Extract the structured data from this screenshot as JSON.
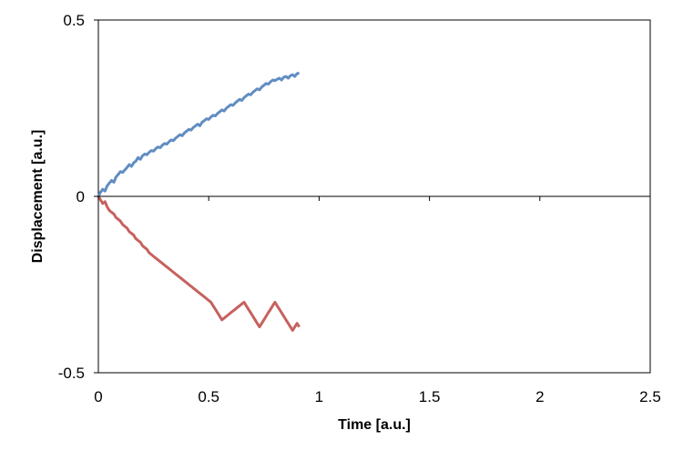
{
  "chart_data": {
    "type": "line",
    "xlabel": "Time [a.u.]",
    "ylabel": "Displacement [a.u.]",
    "xlim": [
      0,
      2.5
    ],
    "ylim": [
      -0.5,
      0.5
    ],
    "x_ticks": [
      "0",
      "0.5",
      "1",
      "1.5",
      "2",
      "2.5"
    ],
    "y_ticks": [
      "-0.5",
      "0",
      "0.5"
    ],
    "grid": false,
    "legend": "none",
    "x_step": 0.01,
    "colors": [
      "#4f81bd",
      "#c0504d",
      "#9bbb59",
      "#8064a2",
      "#4bacc6",
      "#f79646",
      "#2c4d75",
      "#772c2a",
      "#5f7530",
      "#4d3b62",
      "#276a7c",
      "#b65708",
      "#729aca",
      "#cd7371",
      "#afc97a",
      "#9983b5",
      "#6fbdd1",
      "#f9ab6b",
      "#3a5f8f",
      "#e26b0a",
      "#c3b7d4",
      "#f2c0a9"
    ],
    "series": [
      {
        "values": [
          0,
          0.012,
          0.02,
          0.015,
          0.03,
          0.038,
          0.045,
          0.04,
          0.055,
          0.062,
          0.07,
          0.068,
          0.075,
          0.082,
          0.09,
          0.085,
          0.095,
          0.1,
          0.11,
          0.105,
          0.115,
          0.12,
          0.118,
          0.125,
          0.13,
          0.128,
          0.135,
          0.14,
          0.138,
          0.145,
          0.15,
          0.148,
          0.155,
          0.16,
          0.158,
          0.165,
          0.17,
          0.175,
          0.172,
          0.18,
          0.185,
          0.19,
          0.188,
          0.195,
          0.2,
          0.205,
          0.2,
          0.21,
          0.215,
          0.22,
          0.218,
          0.225,
          0.23,
          0.228,
          0.235,
          0.24,
          0.245,
          0.242,
          0.25,
          0.255,
          0.26,
          0.258,
          0.265,
          0.27,
          0.275,
          0.272,
          0.28,
          0.285,
          0.29,
          0.288,
          0.295,
          0.3,
          0.305,
          0.302,
          0.31,
          0.315,
          0.32,
          0.318,
          0.325,
          0.33,
          0.328,
          0.332,
          0.335,
          0.33,
          0.338,
          0.34,
          0.335,
          0.342,
          0.345,
          0.34,
          0.348,
          0.35
        ]
      },
      {
        "values": [
          0,
          -0.01,
          -0.02,
          -0.015,
          -0.03,
          -0.04,
          -0.045,
          -0.05,
          -0.06,
          -0.065,
          -0.07,
          -0.08,
          -0.085,
          -0.09,
          -0.1,
          -0.105,
          -0.11,
          -0.12,
          -0.125,
          -0.13,
          -0.14,
          -0.145,
          -0.15,
          -0.16,
          -0.165,
          -0.17,
          -0.175,
          -0.18,
          -0.185,
          -0.19,
          -0.195,
          -0.2,
          -0.205,
          -0.21,
          -0.215,
          -0.22,
          -0.225,
          -0.23,
          -0.235,
          -0.24,
          -0.245,
          -0.25,
          -0.255,
          -0.26,
          -0.265,
          -0.27,
          -0.275,
          -0.28,
          -0.285,
          -0.29,
          -0.295,
          -0.3,
          -0.31,
          -0.32,
          -0.33,
          -0.34,
          -0.35,
          -0.345,
          -0.34,
          -0.335,
          -0.33,
          -0.325,
          -0.32,
          -0.315,
          -0.31,
          -0.305,
          -0.3,
          -0.31,
          -0.32,
          -0.33,
          -0.34,
          -0.35,
          -0.36,
          -0.37,
          -0.36,
          -0.35,
          -0.34,
          -0.33,
          -0.32,
          -0.31,
          -0.3,
          -0.31,
          -0.32,
          -0.33,
          -0.34,
          -0.35,
          -0.36,
          -0.37,
          -0.38,
          -0.37,
          -0.36,
          -0.37
        ]
      }
    ]
  }
}
